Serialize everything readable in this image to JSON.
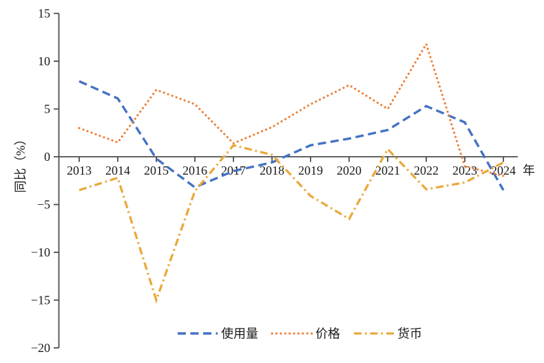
{
  "chart_data": {
    "type": "line",
    "title": "",
    "x": [
      "2013",
      "2014",
      "2015",
      "2016",
      "2017",
      "2018",
      "2019",
      "2020",
      "2021",
      "2022",
      "2023",
      "2024"
    ],
    "x_unit_label": "年",
    "ylabel": "同比（%）",
    "ylim": [
      -20,
      15
    ],
    "yticks": [
      15,
      10,
      5,
      0,
      -5,
      -10,
      -15,
      -20
    ],
    "grid": false,
    "legend_position": "bottom-center",
    "series": [
      {
        "name": "使用量",
        "style": "dashed",
        "color": "#4472C4",
        "values": [
          7.9,
          6.1,
          -0.2,
          -3.2,
          -1.5,
          -0.6,
          1.2,
          1.9,
          2.8,
          5.3,
          3.6,
          -3.5
        ]
      },
      {
        "name": "价格",
        "style": "dotted",
        "color": "#ED7D31",
        "values": [
          3.0,
          1.5,
          7.0,
          5.5,
          1.4,
          3.1,
          5.5,
          7.5,
          5.0,
          11.8,
          -1.0,
          -2.0
        ]
      },
      {
        "name": "货币",
        "style": "dashdot",
        "color": "#E9A93C",
        "values": [
          -3.5,
          -2.2,
          -15.0,
          -3.6,
          1.2,
          0.2,
          -4.1,
          -6.5,
          0.8,
          -3.4,
          -2.7,
          -0.6
        ]
      }
    ]
  },
  "axis": {
    "line_color": "#4d4d4d",
    "text_color": "#1a1a1a"
  }
}
